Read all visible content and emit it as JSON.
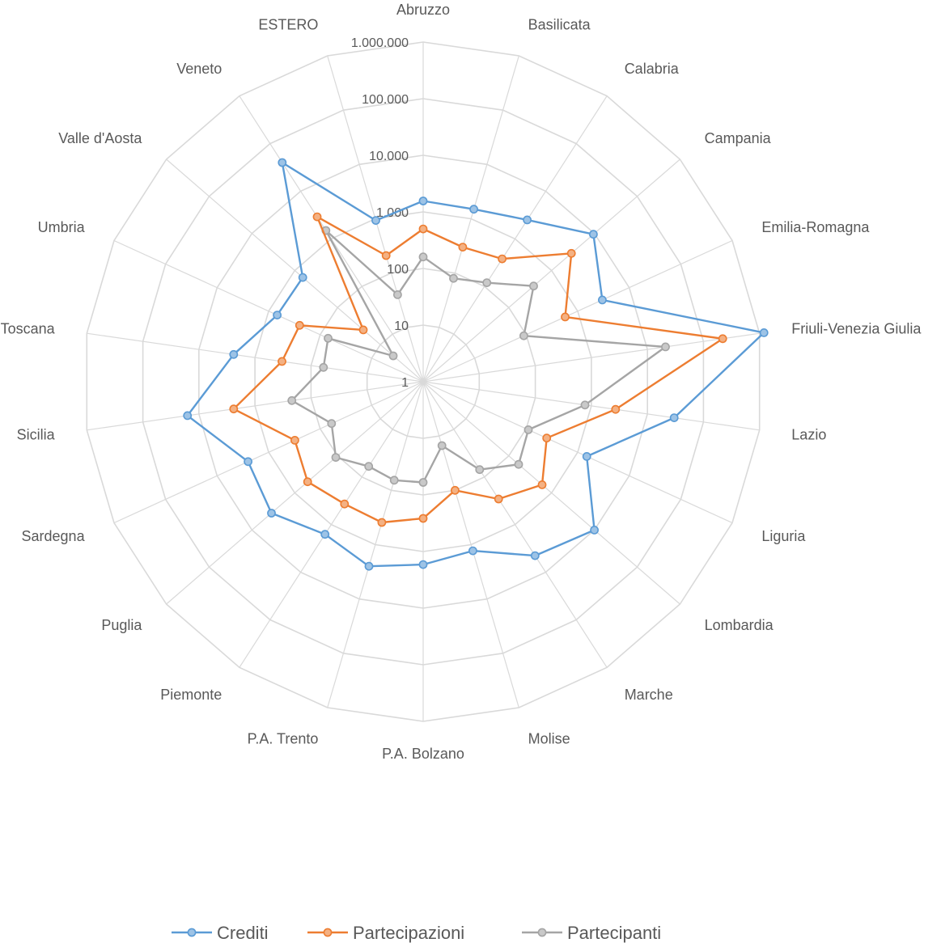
{
  "chart_data": {
    "type": "radar",
    "scale": "log",
    "rlim": [
      1,
      1000000
    ],
    "tick_values": [
      1,
      10,
      100,
      1000,
      10000,
      100000,
      1000000
    ],
    "tick_labels": [
      "1",
      "10",
      "100",
      "1.000",
      "10.000",
      "100.000",
      "1.000.000"
    ],
    "grid": true,
    "legend_position": "bottom",
    "categories": [
      "Abruzzo",
      "Basilicata",
      "Calabria",
      "Campania",
      "Emilia-Romagna",
      "Friuli-Venezia Giulia",
      "Lazio",
      "Liguria",
      "Lombardia",
      "Marche",
      "Molise",
      "P.A. Bolzano",
      "P.A. Trento",
      "Piemonte",
      "Puglia",
      "Sardegna",
      "Sicilia",
      "Toscana",
      "Umbria",
      "Valle d'Aosta",
      "Veneto",
      "ESTERO"
    ],
    "series": [
      {
        "name": "Crediti",
        "color": "#5b9bd5",
        "marker_fill": "#9dc3e6",
        "values": [
          1560,
          1500,
          2500,
          9500,
          3000,
          1200000,
          30000,
          1500,
          10000,
          4500,
          1300,
          1700,
          2500,
          1600,
          3500,
          2500,
          16000,
          2400,
          680,
          650,
          40000,
          930
        ]
      },
      {
        "name": "Partecipazioni",
        "color": "#ed7d31",
        "marker_fill": "#f4b183",
        "values": [
          500,
          300,
          380,
          2900,
          570,
          220000,
          2700,
          250,
          600,
          290,
          100,
          260,
          390,
          370,
          500,
          310,
          2400,
          330,
          250,
          25,
          2900,
          210
        ]
      },
      {
        "name": "Partecipanti",
        "color": "#a5a5a5",
        "marker_fill": "#c9c9c9",
        "values": [
          160,
          80,
          120,
          380,
          90,
          21000,
          770,
          110,
          170,
          70,
          15,
          60,
          65,
          60,
          110,
          60,
          220,
          60,
          70,
          5,
          1500,
          40
        ]
      }
    ]
  }
}
